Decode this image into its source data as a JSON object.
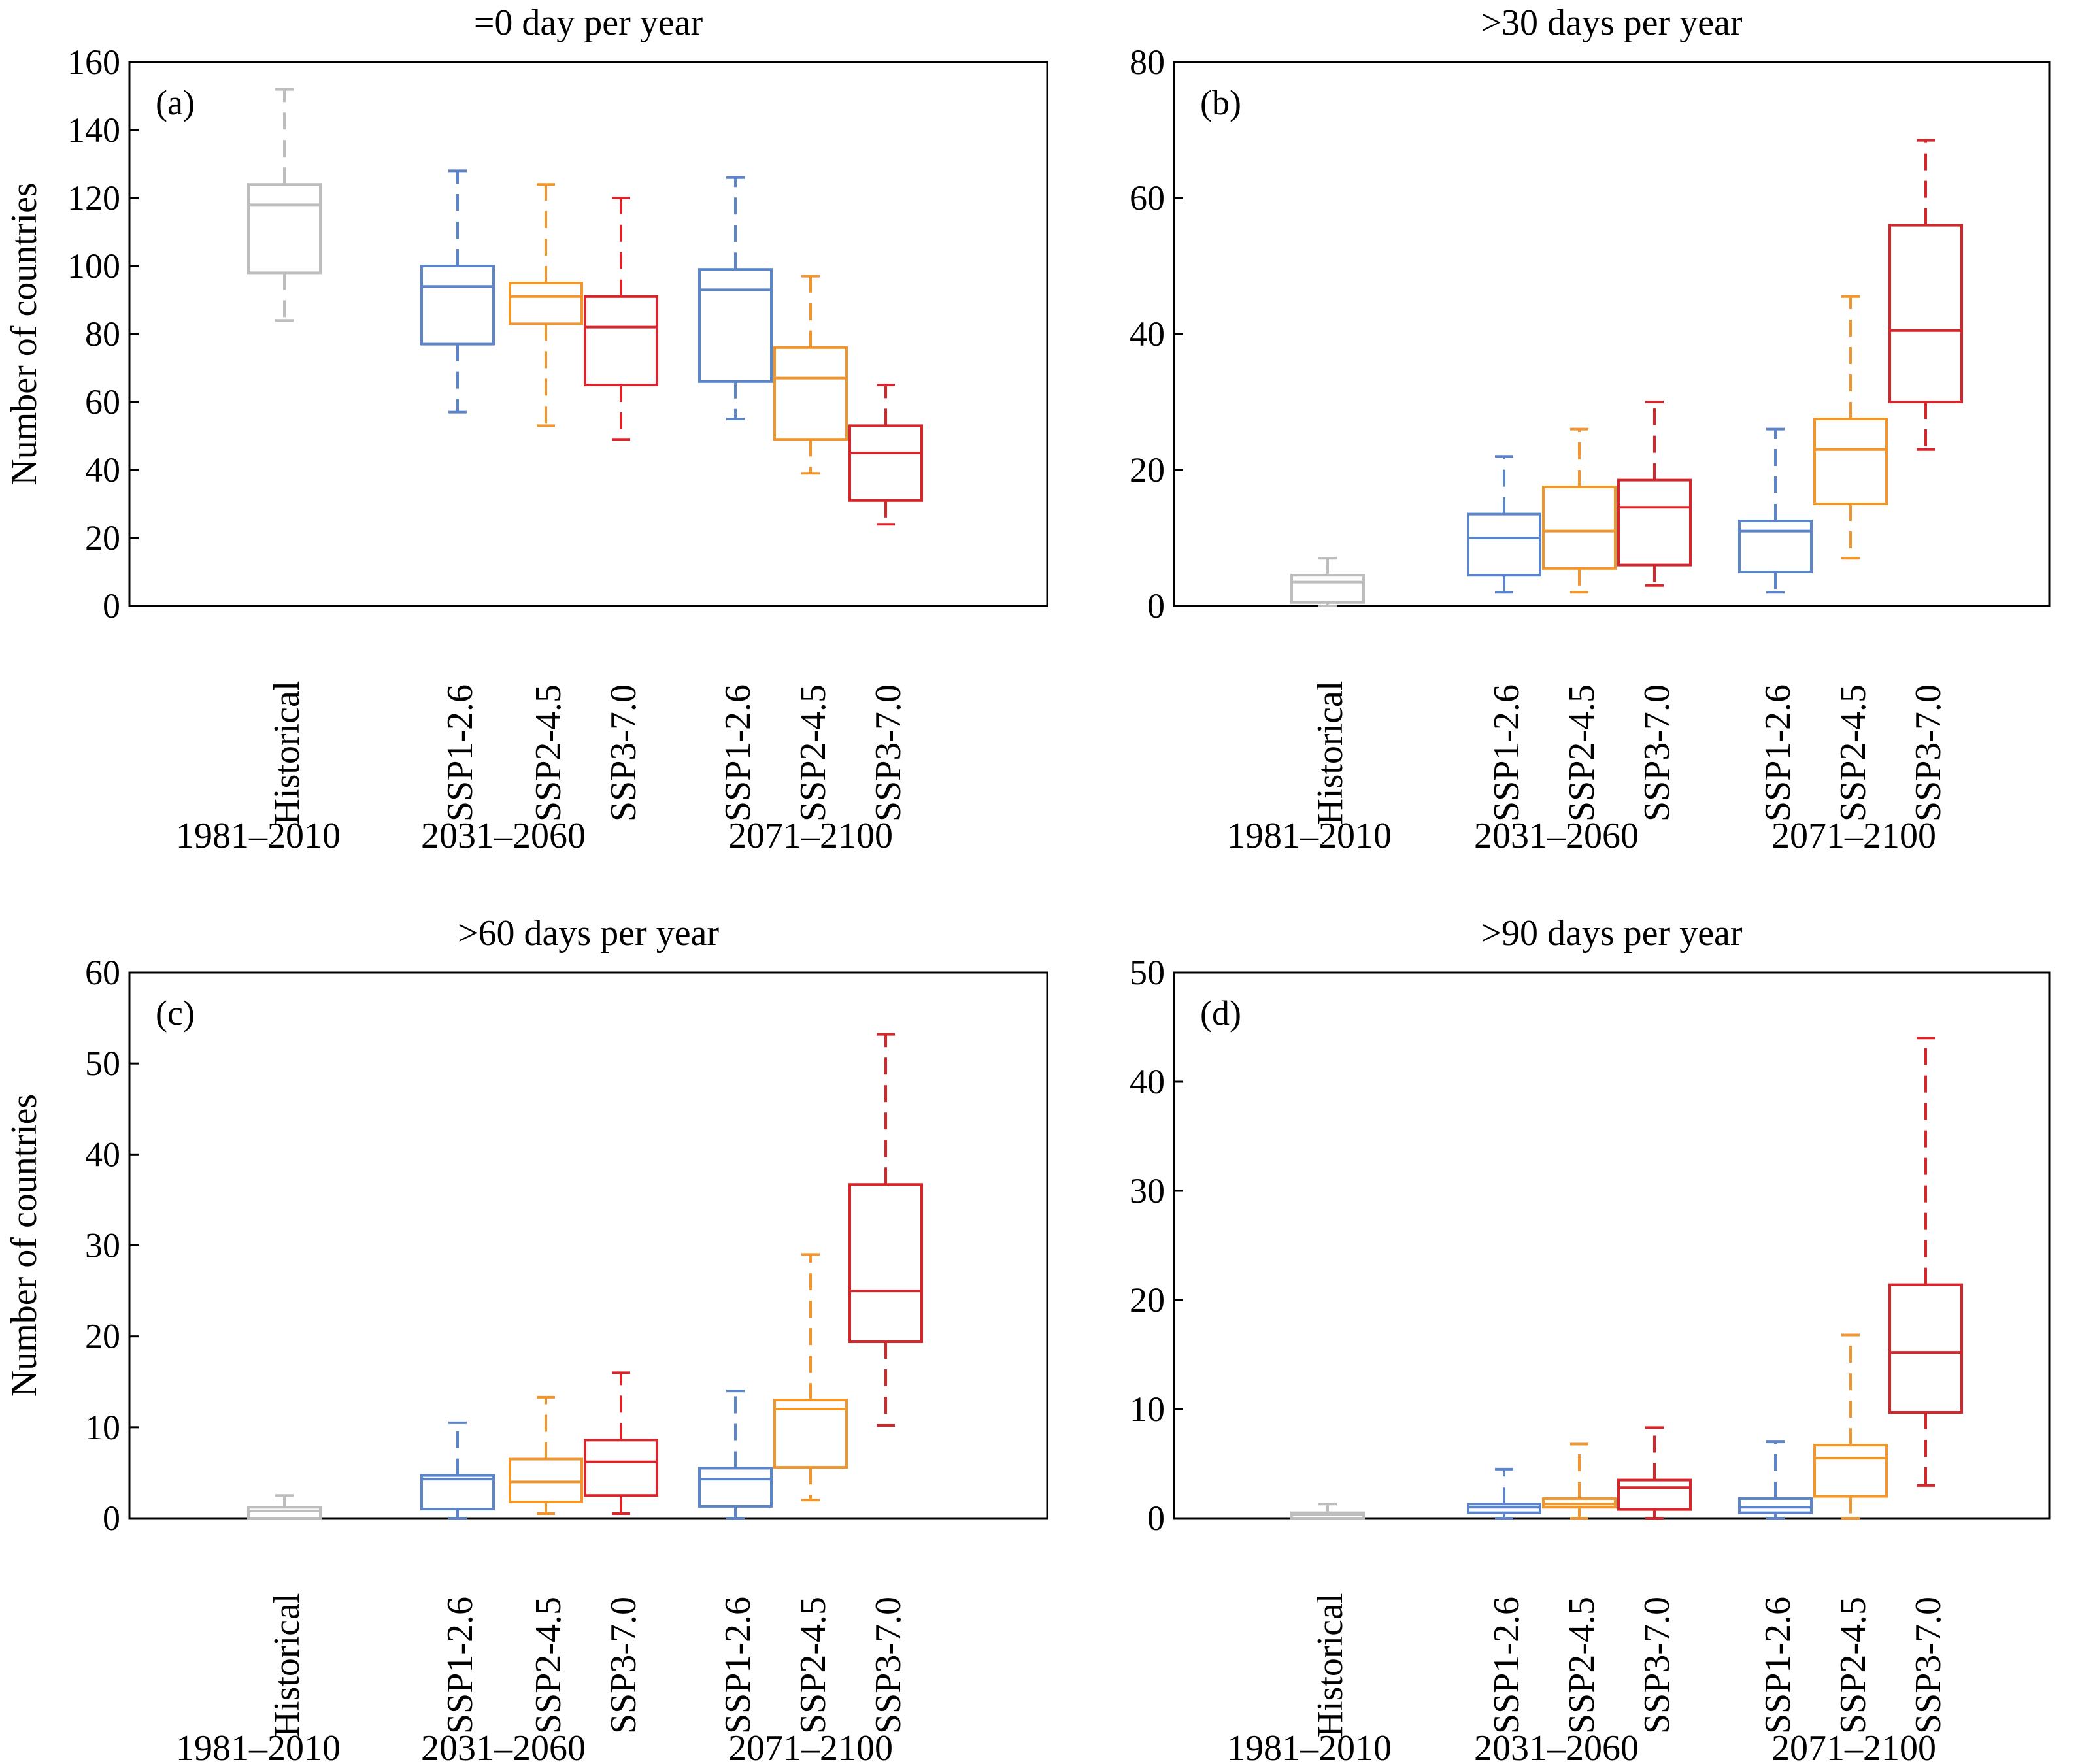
{
  "figure": {
    "y_axis_label": "Number of countries",
    "scenarios": [
      "Historical",
      "SSP1-2.6",
      "SSP2-4.5",
      "SSP3-7.0",
      "SSP1-2.6",
      "SSP2-4.5",
      "SSP3-7.0"
    ],
    "periods": [
      "1981–2010",
      "2031–2060",
      "2071–2100"
    ],
    "colors": {
      "historical": "#bdbdbd",
      "ssp126": "#5b84c9",
      "ssp245": "#f0962c",
      "ssp370": "#d7262b"
    }
  },
  "chart_data": [
    {
      "type": "box",
      "panel_label": "(a)",
      "title": "=0 day per year",
      "ylabel": "Number of countries",
      "ylim": [
        0,
        160
      ],
      "yticks": [
        0,
        20,
        40,
        60,
        80,
        100,
        120,
        140,
        160
      ],
      "boxes": [
        {
          "category": "Historical",
          "period": "1981–2010",
          "color": "historical",
          "whisker_low": 84,
          "q1": 98,
          "median": 118,
          "q3": 124,
          "whisker_high": 152
        },
        {
          "category": "SSP1-2.6",
          "period": "2031–2060",
          "color": "ssp126",
          "whisker_low": 57,
          "q1": 77,
          "median": 94,
          "q3": 100,
          "whisker_high": 128
        },
        {
          "category": "SSP2-4.5",
          "period": "2031–2060",
          "color": "ssp245",
          "whisker_low": 53,
          "q1": 83,
          "median": 91,
          "q3": 95,
          "whisker_high": 124
        },
        {
          "category": "SSP3-7.0",
          "period": "2031–2060",
          "color": "ssp370",
          "whisker_low": 49,
          "q1": 65,
          "median": 82,
          "q3": 91,
          "whisker_high": 120
        },
        {
          "category": "SSP1-2.6",
          "period": "2071–2100",
          "color": "ssp126",
          "whisker_low": 55,
          "q1": 66,
          "median": 93,
          "q3": 99,
          "whisker_high": 126
        },
        {
          "category": "SSP2-4.5",
          "period": "2071–2100",
          "color": "ssp245",
          "whisker_low": 39,
          "q1": 49,
          "median": 67,
          "q3": 76,
          "whisker_high": 97
        },
        {
          "category": "SSP3-7.0",
          "period": "2071–2100",
          "color": "ssp370",
          "whisker_low": 24,
          "q1": 31,
          "median": 45,
          "q3": 53,
          "whisker_high": 65
        }
      ]
    },
    {
      "type": "box",
      "panel_label": "(b)",
      "title": ">30 days per year",
      "ylabel": "",
      "ylim": [
        0,
        80
      ],
      "yticks": [
        0,
        20,
        40,
        60,
        80
      ],
      "boxes": [
        {
          "category": "Historical",
          "period": "1981–2010",
          "color": "historical",
          "whisker_low": 0,
          "q1": 0.5,
          "median": 3.5,
          "q3": 4.5,
          "whisker_high": 7
        },
        {
          "category": "SSP1-2.6",
          "period": "2031–2060",
          "color": "ssp126",
          "whisker_low": 2,
          "q1": 4.5,
          "median": 10,
          "q3": 13.5,
          "whisker_high": 22
        },
        {
          "category": "SSP2-4.5",
          "period": "2031–2060",
          "color": "ssp245",
          "whisker_low": 2,
          "q1": 5.5,
          "median": 11,
          "q3": 17.5,
          "whisker_high": 26
        },
        {
          "category": "SSP3-7.0",
          "period": "2031–2060",
          "color": "ssp370",
          "whisker_low": 3,
          "q1": 6,
          "median": 14.5,
          "q3": 18.5,
          "whisker_high": 30
        },
        {
          "category": "SSP1-2.6",
          "period": "2071–2100",
          "color": "ssp126",
          "whisker_low": 2,
          "q1": 5,
          "median": 11,
          "q3": 12.5,
          "whisker_high": 26
        },
        {
          "category": "SSP2-4.5",
          "period": "2071–2100",
          "color": "ssp245",
          "whisker_low": 7,
          "q1": 15,
          "median": 23,
          "q3": 27.5,
          "whisker_high": 45.5
        },
        {
          "category": "SSP3-7.0",
          "period": "2071–2100",
          "color": "ssp370",
          "whisker_low": 23,
          "q1": 30,
          "median": 40.5,
          "q3": 56,
          "whisker_high": 68.5
        }
      ]
    },
    {
      "type": "box",
      "panel_label": "(c)",
      "title": ">60 days per year",
      "ylabel": "Number of countries",
      "ylim": [
        0,
        60
      ],
      "yticks": [
        0,
        10,
        20,
        30,
        40,
        50,
        60
      ],
      "boxes": [
        {
          "category": "Historical",
          "period": "1981–2010",
          "color": "historical",
          "whisker_low": 0,
          "q1": 0,
          "median": 0.8,
          "q3": 1.2,
          "whisker_high": 2.5
        },
        {
          "category": "SSP1-2.6",
          "period": "2031–2060",
          "color": "ssp126",
          "whisker_low": 0,
          "q1": 1,
          "median": 4.3,
          "q3": 4.7,
          "whisker_high": 10.5
        },
        {
          "category": "SSP2-4.5",
          "period": "2031–2060",
          "color": "ssp245",
          "whisker_low": 0.5,
          "q1": 1.8,
          "median": 4,
          "q3": 6.5,
          "whisker_high": 13.3
        },
        {
          "category": "SSP3-7.0",
          "period": "2031–2060",
          "color": "ssp370",
          "whisker_low": 0.5,
          "q1": 2.5,
          "median": 6.2,
          "q3": 8.6,
          "whisker_high": 16
        },
        {
          "category": "SSP1-2.6",
          "period": "2071–2100",
          "color": "ssp126",
          "whisker_low": 0,
          "q1": 1.3,
          "median": 4.3,
          "q3": 5.5,
          "whisker_high": 14
        },
        {
          "category": "SSP2-4.5",
          "period": "2071–2100",
          "color": "ssp245",
          "whisker_low": 2,
          "q1": 5.6,
          "median": 12,
          "q3": 13,
          "whisker_high": 29
        },
        {
          "category": "SSP3-7.0",
          "period": "2071–2100",
          "color": "ssp370",
          "whisker_low": 10.2,
          "q1": 19.4,
          "median": 25,
          "q3": 36.7,
          "whisker_high": 53.2
        }
      ]
    },
    {
      "type": "box",
      "panel_label": "(d)",
      "title": ">90 days per year",
      "ylabel": "",
      "ylim": [
        0,
        50
      ],
      "yticks": [
        0,
        10,
        20,
        30,
        40,
        50
      ],
      "boxes": [
        {
          "category": "Historical",
          "period": "1981–2010",
          "color": "historical",
          "whisker_low": 0,
          "q1": 0,
          "median": 0.3,
          "q3": 0.5,
          "whisker_high": 1.3
        },
        {
          "category": "SSP1-2.6",
          "period": "2031–2060",
          "color": "ssp126",
          "whisker_low": 0,
          "q1": 0.5,
          "median": 1,
          "q3": 1.3,
          "whisker_high": 4.5
        },
        {
          "category": "SSP2-4.5",
          "period": "2031–2060",
          "color": "ssp245",
          "whisker_low": 0,
          "q1": 1,
          "median": 1.3,
          "q3": 1.8,
          "whisker_high": 6.8
        },
        {
          "category": "SSP3-7.0",
          "period": "2031–2060",
          "color": "ssp370",
          "whisker_low": 0,
          "q1": 0.8,
          "median": 2.8,
          "q3": 3.5,
          "whisker_high": 8.3
        },
        {
          "category": "SSP1-2.6",
          "period": "2071–2100",
          "color": "ssp126",
          "whisker_low": 0,
          "q1": 0.5,
          "median": 1,
          "q3": 1.8,
          "whisker_high": 7
        },
        {
          "category": "SSP2-4.5",
          "period": "2071–2100",
          "color": "ssp245",
          "whisker_low": 0,
          "q1": 2,
          "median": 5.5,
          "q3": 6.7,
          "whisker_high": 16.8
        },
        {
          "category": "SSP3-7.0",
          "period": "2071–2100",
          "color": "ssp370",
          "whisker_low": 3,
          "q1": 9.7,
          "median": 15.2,
          "q3": 21.4,
          "whisker_high": 44
        }
      ]
    }
  ]
}
